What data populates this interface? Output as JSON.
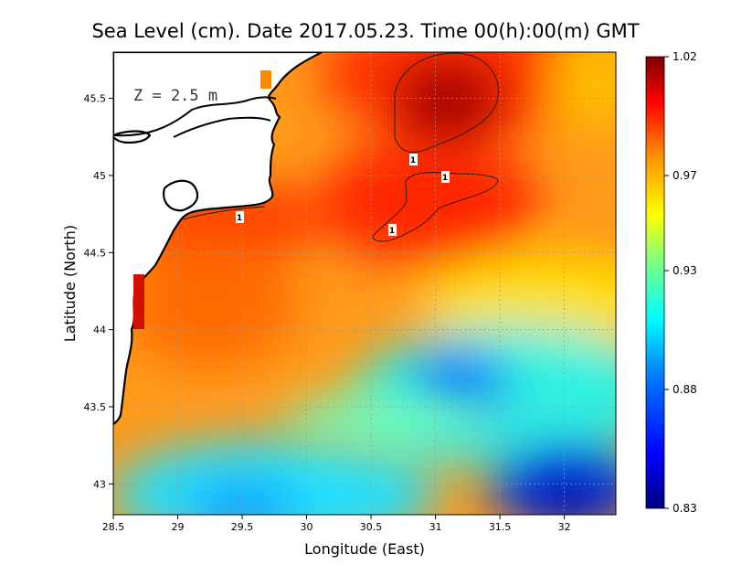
{
  "title": "Sea Level (cm). Date 2017.05.23. Time 00(h):00(m) GMT",
  "depth_label": "Z = 2.5 m",
  "x_axis": {
    "label": "Longitude (East)",
    "range": [
      28.5,
      32.4
    ],
    "ticks": [
      28.5,
      29,
      29.5,
      30,
      30.5,
      31,
      31.5,
      32
    ],
    "tick_labels": [
      "28.5",
      "29",
      "29.5",
      "30",
      "30.5",
      "31",
      "31.5",
      "32"
    ]
  },
  "y_axis": {
    "label": "Latitude (North)",
    "range": [
      42.8,
      45.8
    ],
    "ticks": [
      43,
      43.5,
      44,
      44.5,
      45,
      45.5
    ],
    "tick_labels": [
      "43",
      "43.5",
      "44",
      "44.5",
      "45",
      "45.5"
    ]
  },
  "colorbar": {
    "min": 0.83,
    "max": 1.02,
    "tick_values": [
      1.02,
      0.97,
      0.93,
      0.88,
      0.83
    ],
    "tick_labels": [
      "1.02",
      "0.97",
      "0.93",
      "0.88",
      "0.83"
    ],
    "colors": [
      "#00007f",
      "#0000ff",
      "#0080ff",
      "#00ffff",
      "#80ff80",
      "#ffff00",
      "#ff8000",
      "#ff0000",
      "#7f0000"
    ]
  },
  "contour_labels": [
    "1",
    "1",
    "1",
    "1"
  ],
  "grid": true,
  "chart_data": {
    "type": "heatmap",
    "title": "Sea Level (cm). Date 2017.05.23. Time 00(h):00(m) GMT",
    "xlabel": "Longitude (East)",
    "ylabel": "Latitude (North)",
    "xlim": [
      28.5,
      32.4
    ],
    "ylim": [
      42.8,
      45.8
    ],
    "value_range": [
      0.83,
      1.02
    ],
    "contour_level": 1,
    "field_features": [
      {
        "lon": 31.1,
        "lat": 45.5,
        "value": 1.02
      },
      {
        "lon": 30.9,
        "lat": 44.9,
        "value": 1.0
      },
      {
        "lon": 29.5,
        "lat": 44.7,
        "value": 1.0
      },
      {
        "lon": 31.2,
        "lat": 43.65,
        "value": 0.88
      },
      {
        "lon": 32.0,
        "lat": 43.0,
        "value": 0.84
      },
      {
        "lon": 29.4,
        "lat": 42.9,
        "value": 0.87
      },
      {
        "lon": 32.3,
        "lat": 45.7,
        "value": 0.96
      }
    ]
  }
}
